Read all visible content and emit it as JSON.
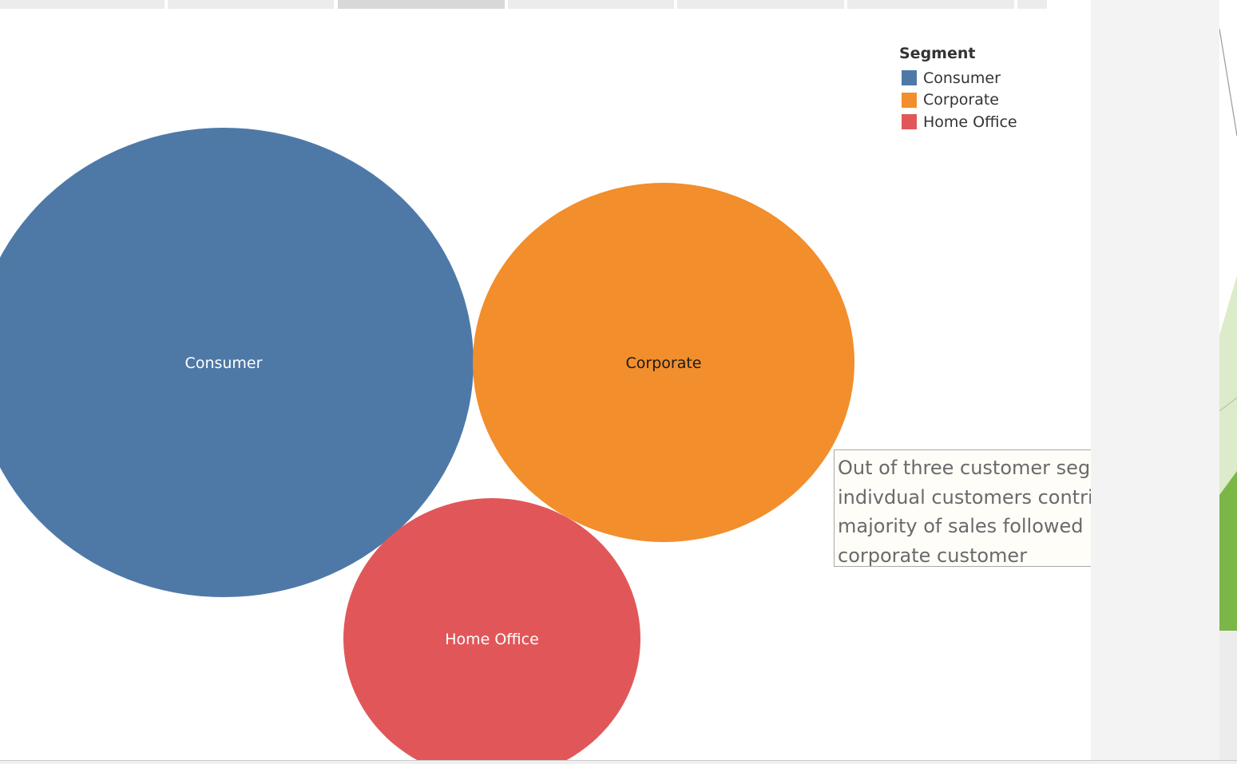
{
  "tabs": [
    {
      "active": false
    },
    {
      "active": false
    },
    {
      "active": true
    },
    {
      "active": false
    },
    {
      "active": false
    },
    {
      "active": false
    },
    {
      "active": false
    }
  ],
  "legend": {
    "title": "Segment",
    "items": [
      {
        "label": "Consumer",
        "color": "#4e79a7"
      },
      {
        "label": "Corporate",
        "color": "#f28e2b"
      },
      {
        "label": "Home Office",
        "color": "#e15759"
      }
    ]
  },
  "annotation": {
    "text": "Out of three customer segments, indivdual customers contributes majority of sales followed by corporate customer"
  },
  "chart_data": {
    "type": "bubble",
    "legend_title": "Segment",
    "legend_position": "top-right",
    "series": [
      {
        "name": "Consumer",
        "relative_size": 1.0,
        "color": "#4e79a7",
        "label_color": "#ffffff"
      },
      {
        "name": "Corporate",
        "relative_size": 0.58,
        "color": "#f28e2b",
        "label_color": "#1a1a1a"
      },
      {
        "name": "Home Office",
        "relative_size": 0.39,
        "color": "#e15759",
        "label_color": "#ffffff"
      }
    ]
  }
}
